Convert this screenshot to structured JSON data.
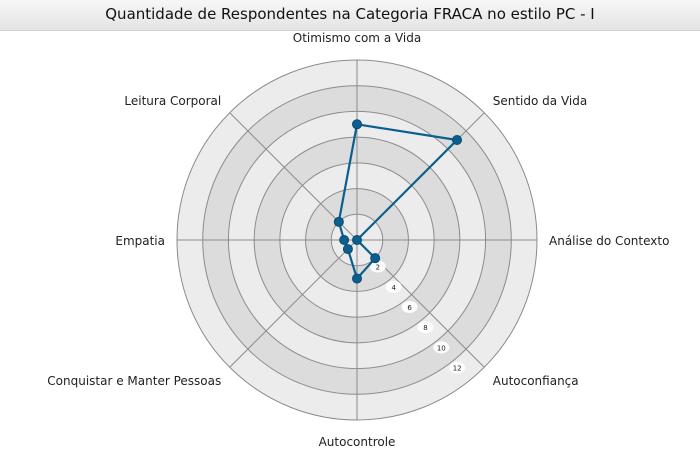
{
  "chart_data": {
    "type": "radar",
    "title": "Quantidade de Respondentes na Categoria FRACA no estilo PC - I",
    "categories": [
      "Otimismo com a Vida",
      "Sentido da Vida",
      "Análise do Contexto",
      "Autoconfiança",
      "Autocontrole",
      "Conquistar e Manter Pessoas",
      "Empatia",
      "Leitura Corporal"
    ],
    "series": [
      {
        "values": [
          9,
          11,
          0,
          2,
          3,
          1,
          1,
          2
        ],
        "color": "#0b5f8f"
      }
    ],
    "radial_ticks": [
      "2",
      "4",
      "6",
      "8",
      "10",
      "12"
    ],
    "rlim": [
      0,
      14
    ],
    "grid": true,
    "legend": "none"
  },
  "colors": {
    "series": "#0b5f8f",
    "ring_outer": "#ececec",
    "ring_inner": "#dcdcdc",
    "grid_line": "#8c8c8c"
  }
}
